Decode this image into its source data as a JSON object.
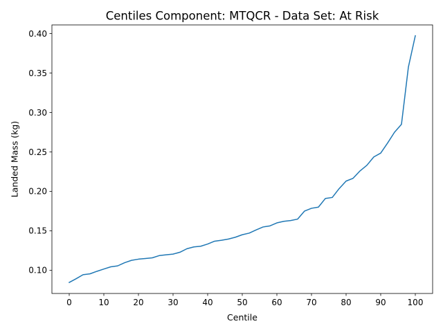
{
  "chart_data": {
    "type": "line",
    "title": "Centiles Component: MTQCR - Data Set: At Risk",
    "xlabel": "Centile",
    "ylabel": "Landed Mass (kg)",
    "xlim": [
      -5,
      105
    ],
    "ylim": [
      0.0705,
      0.411
    ],
    "x_ticks": [
      0,
      10,
      20,
      30,
      40,
      50,
      60,
      70,
      80,
      90,
      100
    ],
    "y_ticks": [
      0.1,
      0.15,
      0.2,
      0.25,
      0.3,
      0.35,
      0.4
    ],
    "y_tick_labels": [
      "0.10",
      "0.15",
      "0.20",
      "0.25",
      "0.30",
      "0.35",
      "0.40"
    ],
    "grid": false,
    "line_color": "#1f77b4",
    "x": [
      0,
      2,
      4,
      6,
      8,
      10,
      12,
      14,
      16,
      18,
      20,
      22,
      24,
      26,
      28,
      30,
      32,
      34,
      36,
      38,
      40,
      42,
      44,
      46,
      48,
      50,
      52,
      54,
      56,
      58,
      60,
      62,
      64,
      66,
      68,
      70,
      72,
      74,
      76,
      78,
      80,
      82,
      84,
      86,
      88,
      90,
      92,
      94,
      96,
      98,
      100
    ],
    "y": [
      0.0845,
      0.0892,
      0.0943,
      0.0954,
      0.0986,
      0.1015,
      0.1043,
      0.1055,
      0.1095,
      0.1125,
      0.114,
      0.1148,
      0.1157,
      0.1185,
      0.1195,
      0.1204,
      0.1228,
      0.1272,
      0.1295,
      0.1304,
      0.1332,
      0.1368,
      0.138,
      0.1395,
      0.1418,
      0.145,
      0.147,
      0.1511,
      0.1548,
      0.1562,
      0.16,
      0.162,
      0.163,
      0.1648,
      0.175,
      0.1785,
      0.18,
      0.1909,
      0.1922,
      0.2035,
      0.213,
      0.2165,
      0.2258,
      0.233,
      0.2436,
      0.2485,
      0.2613,
      0.275,
      0.285,
      0.3575,
      0.3973
    ]
  }
}
